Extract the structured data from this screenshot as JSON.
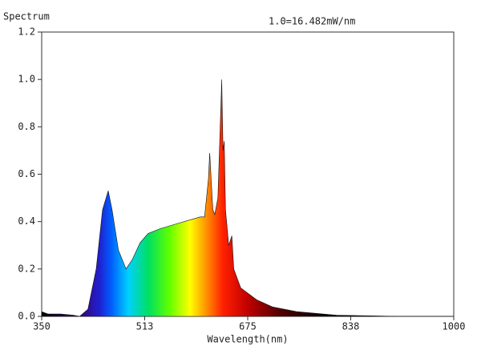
{
  "chart_data": {
    "type": "area",
    "title": "Spectrum",
    "annotation": "1.0=16.482mW/nm",
    "x_label": "Wavelength(nm)",
    "x": [
      350,
      360,
      380,
      400,
      410,
      423,
      436,
      446,
      455,
      461,
      471,
      483,
      493,
      505,
      518,
      537,
      562,
      588,
      600,
      607,
      610,
      613,
      615,
      620,
      623,
      628,
      634,
      636,
      638,
      640,
      645,
      650,
      653,
      664,
      689,
      714,
      752,
      815,
      916,
      1000
    ],
    "values": [
      0.02,
      0.01,
      0.01,
      0.005,
      0.0,
      0.03,
      0.2,
      0.45,
      0.53,
      0.45,
      0.28,
      0.2,
      0.24,
      0.31,
      0.35,
      0.37,
      0.39,
      0.41,
      0.42,
      0.42,
      0.5,
      0.58,
      0.69,
      0.45,
      0.43,
      0.5,
      1.0,
      0.7,
      0.74,
      0.45,
      0.3,
      0.34,
      0.2,
      0.12,
      0.07,
      0.04,
      0.02,
      0.005,
      0.0,
      0.0
    ],
    "xlim": [
      350,
      1000
    ],
    "xticks": [
      350,
      {
        "value": 512.5,
        "label": "513"
      },
      675,
      {
        "value": 837.5,
        "label": "838"
      },
      1000
    ],
    "ylim": [
      0,
      1.2
    ],
    "yticks": [
      {
        "value": 0,
        "label": "0.0"
      },
      {
        "value": 0.2,
        "label": "0.2"
      },
      {
        "value": 0.4,
        "label": "0.4"
      },
      {
        "value": 0.6,
        "label": "0.6"
      },
      {
        "value": 0.8,
        "label": "0.8"
      },
      {
        "value": 1.0,
        "label": "1.0"
      },
      {
        "value": 1.2,
        "label": "1.2"
      }
    ]
  }
}
